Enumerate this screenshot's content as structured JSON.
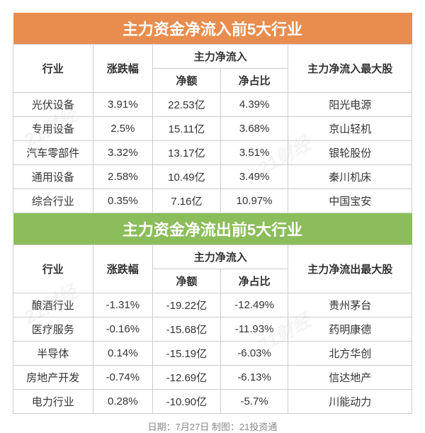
{
  "watermarks": [
    "21财经",
    "21财经",
    "21财经",
    "21财经"
  ],
  "inflow": {
    "title": "主力资金净流入前5大行业",
    "title_bg": "#e98d4e",
    "title_fontsize": 22,
    "headers": {
      "industry": "行业",
      "change": "涨跌幅",
      "flow_group": "主力净流入",
      "amount": "净额",
      "ratio": "净占比",
      "stock": "主力净流入最大股"
    },
    "rows": [
      {
        "industry": "光伏设备",
        "change": "3.91%",
        "amount": "22.53亿",
        "ratio": "4.39%",
        "stock": "阳光电源"
      },
      {
        "industry": "专用设备",
        "change": "2.5%",
        "amount": "15.11亿",
        "ratio": "3.68%",
        "stock": "京山轻机"
      },
      {
        "industry": "汽车零部件",
        "change": "3.32%",
        "amount": "13.17亿",
        "ratio": "3.51%",
        "stock": "银轮股份"
      },
      {
        "industry": "通用设备",
        "change": "2.58%",
        "amount": "10.49亿",
        "ratio": "3.49%",
        "stock": "秦川机床"
      },
      {
        "industry": "综合行业",
        "change": "0.35%",
        "amount": "7.16亿",
        "ratio": "10.97%",
        "stock": "中国宝安"
      }
    ]
  },
  "outflow": {
    "title": "主力资金净流出前5大行业",
    "title_bg": "#8bbd5a",
    "title_fontsize": 22,
    "headers": {
      "industry": "行业",
      "change": "涨跌幅",
      "flow_group": "主力净流入",
      "amount": "净额",
      "ratio": "净占比",
      "stock": "主力净流出最大股"
    },
    "rows": [
      {
        "industry": "酿酒行业",
        "change": "-1.31%",
        "amount": "-19.22亿",
        "ratio": "-12.49%",
        "stock": "贵州茅台"
      },
      {
        "industry": "医疗服务",
        "change": "-0.16%",
        "amount": "-15.68亿",
        "ratio": "-11.93%",
        "stock": "药明康德"
      },
      {
        "industry": "半导体",
        "change": "0.14%",
        "amount": "-15.19亿",
        "ratio": "-6.03%",
        "stock": "北方华创"
      },
      {
        "industry": "房地产开发",
        "change": "-0.74%",
        "amount": "-12.69亿",
        "ratio": "-6.13%",
        "stock": "信达地产"
      },
      {
        "industry": "电力行业",
        "change": "0.28%",
        "amount": "-10.90亿",
        "ratio": "-5.7%",
        "stock": "川能动力"
      }
    ]
  },
  "footer": "日期：7月27日 制图：21投资通",
  "border_color": "#cccccc",
  "text_color": "#333333"
}
